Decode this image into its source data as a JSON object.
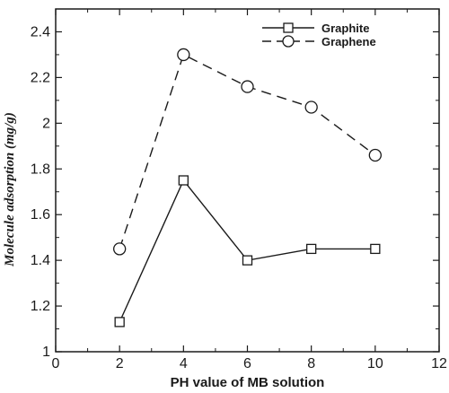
{
  "chart_data": {
    "type": "line",
    "xlabel": "PH value of MB solution",
    "ylabel": "Molecule adsorption (mg/g)",
    "xlim": [
      0,
      12
    ],
    "ylim": [
      1,
      2.5
    ],
    "xticks": [
      0,
      2,
      4,
      6,
      8,
      10,
      12
    ],
    "yticks": [
      1,
      1.2,
      1.4,
      1.6,
      1.8,
      2,
      2.2,
      2.4
    ],
    "ytick_labels": [
      "1",
      "1.2",
      "1.4",
      "1.6",
      "1.8",
      "2",
      "2.2",
      "2.4"
    ],
    "grid": false,
    "legend_position": "top-right",
    "series": [
      {
        "name": "Graphite",
        "marker": "square",
        "line_style": "solid",
        "color": "#1a1a1a",
        "x": [
          2,
          4,
          6,
          8,
          10
        ],
        "y": [
          1.13,
          1.75,
          1.4,
          1.45,
          1.45
        ]
      },
      {
        "name": "Graphene",
        "marker": "circle",
        "line_style": "dashed",
        "color": "#1a1a1a",
        "x": [
          2,
          4,
          6,
          8,
          10
        ],
        "y": [
          1.45,
          2.3,
          2.16,
          2.07,
          1.86
        ]
      }
    ]
  }
}
